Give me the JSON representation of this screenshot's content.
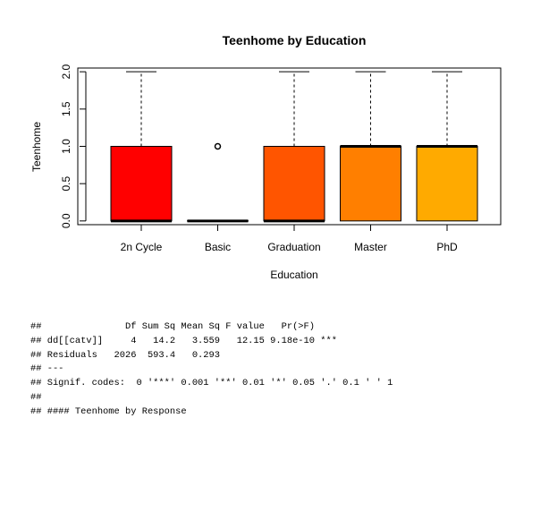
{
  "chart_data": {
    "type": "boxplot",
    "title": "Teenhome by Education",
    "xlabel": "Education",
    "ylabel": "Teenhome",
    "ylim": [
      -0.05,
      2.05
    ],
    "yticks": [
      "0.0",
      "0.5",
      "1.0",
      "1.5",
      "2.0"
    ],
    "categories": [
      "2n Cycle",
      "Basic",
      "Graduation",
      "Master",
      "PhD"
    ],
    "boxes": [
      {
        "category": "2n Cycle",
        "min": 0,
        "q1": 0,
        "median": 0,
        "q3": 1,
        "max": 2,
        "outliers": [],
        "color": "#ff0000"
      },
      {
        "category": "Basic",
        "min": 0,
        "q1": 0,
        "median": 0,
        "q3": 0,
        "max": 0,
        "outliers": [
          1
        ],
        "color": "#ff2a00"
      },
      {
        "category": "Graduation",
        "min": 0,
        "q1": 0,
        "median": 0,
        "q3": 1,
        "max": 2,
        "outliers": [],
        "color": "#ff5500"
      },
      {
        "category": "Master",
        "min": 0,
        "q1": 0,
        "median": 1,
        "q3": 1,
        "max": 2,
        "outliers": [],
        "color": "#ff7f00"
      },
      {
        "category": "PhD",
        "min": 0,
        "q1": 0,
        "median": 1,
        "q3": 1,
        "max": 2,
        "outliers": [],
        "color": "#ffaa00"
      }
    ],
    "grid": false,
    "legend": "none"
  },
  "console": {
    "lines": [
      "##               Df Sum Sq Mean Sq F value   Pr(>F)    ",
      "## dd[[catv]]     4   14.2   3.559   12.15 9.18e-10 ***",
      "## Residuals   2026  593.4   0.293                     ",
      "## ---",
      "## Signif. codes:  0 '***' 0.001 '**' 0.01 '*' 0.05 '.' 0.1 ' ' 1",
      "##",
      "## #### Teenhome by Response"
    ]
  }
}
